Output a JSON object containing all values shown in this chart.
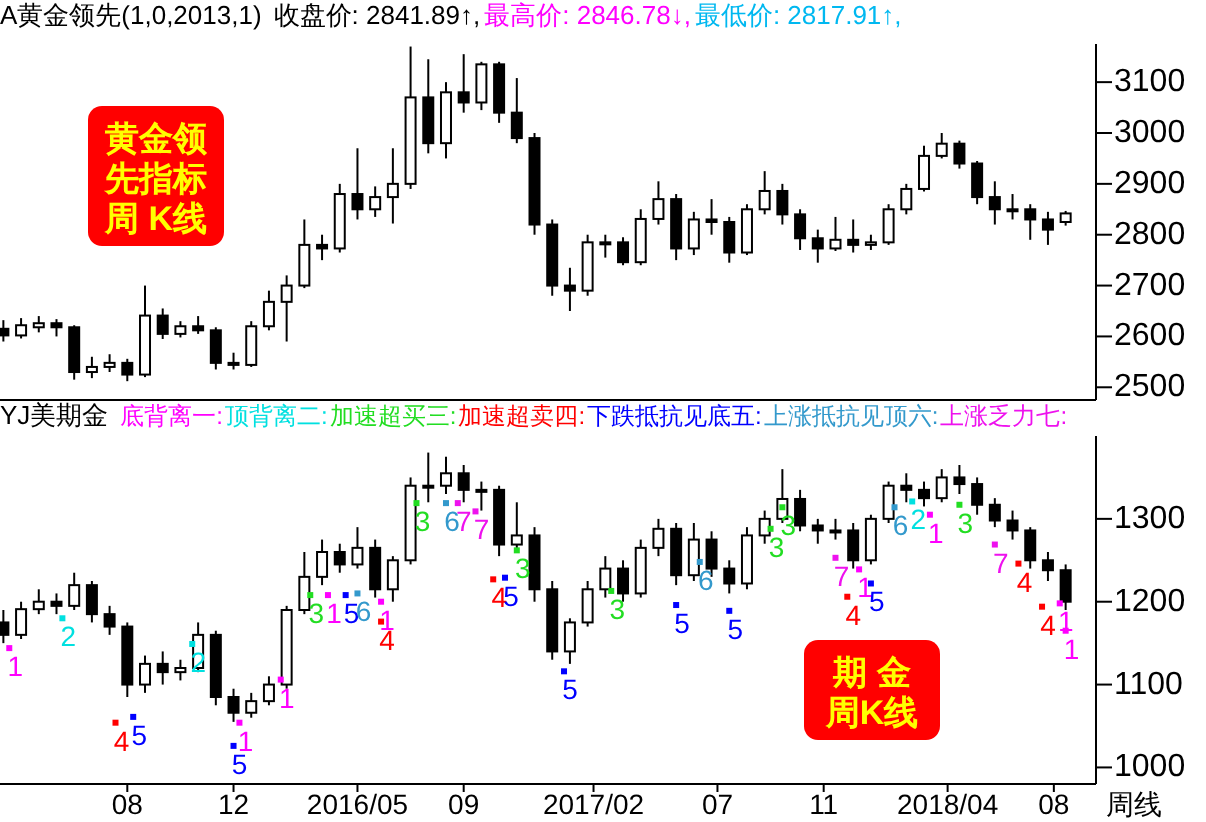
{
  "chart_data": [
    {
      "type": "candlestick",
      "title": "A黄金领先(1,0,2013,1)",
      "tick_labels": "y",
      "annotations": [
        "收盘价: 2841.89↑,",
        "最高价: 2846.78↓,",
        "最低价: 2817.91↑,",
        "黄金领先指标周 K线"
      ],
      "x": [
        "2015-03-09",
        "2015-03-30",
        "2015-04-20",
        "2015-05-11",
        "2015-06-01",
        "2015-06-22",
        "2015-07-13",
        "2015-08-03",
        "2015-08-24",
        "2015-09-14",
        "2015-10-05",
        "2015-10-26",
        "2015-11-16",
        "2015-12-07",
        "2015-12-28",
        "2016-01-18",
        "2016-02-08",
        "2016-02-29",
        "2016-03-21",
        "2016-04-11",
        "2016-05-02",
        "2016-05-23",
        "2016-06-13",
        "2016-07-04",
        "2016-07-25",
        "2016-08-15",
        "2016-09-05",
        "2016-09-26",
        "2016-10-17",
        "2016-11-07",
        "2016-11-28",
        "2016-12-19",
        "2017-01-09",
        "2017-01-30",
        "2017-02-20",
        "2017-03-13",
        "2017-04-03",
        "2017-04-24",
        "2017-05-15",
        "2017-06-05",
        "2017-06-26",
        "2017-07-17",
        "2017-08-07",
        "2017-08-28",
        "2017-09-18",
        "2017-10-09",
        "2017-10-30",
        "2017-11-20",
        "2017-12-11",
        "2018-01-01",
        "2018-01-22",
        "2018-02-12",
        "2018-03-05",
        "2018-03-26",
        "2018-04-16",
        "2018-05-07",
        "2018-05-28",
        "2018-06-18",
        "2018-07-09",
        "2018-07-30",
        "2018-08-20"
      ],
      "ohlc": [
        [
          2615,
          2632,
          2590,
          2602
        ],
        [
          2602,
          2636,
          2596,
          2622
        ],
        [
          2618,
          2640,
          2608,
          2626
        ],
        [
          2626,
          2634,
          2600,
          2618
        ],
        [
          2618,
          2622,
          2515,
          2530
        ],
        [
          2530,
          2560,
          2518,
          2540
        ],
        [
          2540,
          2565,
          2530,
          2548
        ],
        [
          2548,
          2556,
          2512,
          2525
        ],
        [
          2525,
          2700,
          2520,
          2641
        ],
        [
          2641,
          2655,
          2595,
          2605
        ],
        [
          2605,
          2630,
          2598,
          2620
        ],
        [
          2620,
          2640,
          2605,
          2612
        ],
        [
          2612,
          2618,
          2535,
          2548
        ],
        [
          2548,
          2568,
          2535,
          2544
        ],
        [
          2544,
          2630,
          2540,
          2620
        ],
        [
          2620,
          2690,
          2612,
          2668
        ],
        [
          2668,
          2720,
          2590,
          2700
        ],
        [
          2700,
          2830,
          2695,
          2780
        ],
        [
          2780,
          2800,
          2750,
          2773
        ],
        [
          2773,
          2900,
          2765,
          2880
        ],
        [
          2880,
          2970,
          2830,
          2850
        ],
        [
          2850,
          2895,
          2835,
          2874
        ],
        [
          2874,
          2970,
          2822,
          2900
        ],
        [
          2900,
          3170,
          2890,
          3070
        ],
        [
          3070,
          3145,
          2960,
          2980
        ],
        [
          2980,
          3100,
          2950,
          3080
        ],
        [
          3080,
          3155,
          3040,
          3060
        ],
        [
          3060,
          3140,
          3045,
          3135
        ],
        [
          3135,
          3140,
          3020,
          3040
        ],
        [
          3040,
          3108,
          2980,
          2990
        ],
        [
          2990,
          3000,
          2800,
          2820
        ],
        [
          2820,
          2830,
          2680,
          2700
        ],
        [
          2700,
          2735,
          2650,
          2690
        ],
        [
          2690,
          2800,
          2680,
          2785
        ],
        [
          2785,
          2800,
          2755,
          2785
        ],
        [
          2785,
          2795,
          2740,
          2746
        ],
        [
          2746,
          2850,
          2740,
          2831
        ],
        [
          2831,
          2905,
          2820,
          2870
        ],
        [
          2870,
          2880,
          2750,
          2773
        ],
        [
          2773,
          2845,
          2760,
          2830
        ],
        [
          2830,
          2870,
          2800,
          2825
        ],
        [
          2825,
          2835,
          2745,
          2765
        ],
        [
          2765,
          2860,
          2760,
          2850
        ],
        [
          2850,
          2925,
          2840,
          2886
        ],
        [
          2886,
          2900,
          2820,
          2840
        ],
        [
          2840,
          2850,
          2770,
          2793
        ],
        [
          2793,
          2810,
          2745,
          2773
        ],
        [
          2773,
          2835,
          2768,
          2790
        ],
        [
          2790,
          2830,
          2765,
          2780
        ],
        [
          2780,
          2800,
          2770,
          2785
        ],
        [
          2785,
          2860,
          2780,
          2850
        ],
        [
          2850,
          2900,
          2840,
          2890
        ],
        [
          2890,
          2975,
          2885,
          2955
        ],
        [
          2955,
          3000,
          2950,
          2979
        ],
        [
          2979,
          2985,
          2930,
          2940
        ],
        [
          2940,
          2945,
          2860,
          2874
        ],
        [
          2874,
          2905,
          2820,
          2850
        ],
        [
          2850,
          2880,
          2830,
          2850
        ],
        [
          2850,
          2860,
          2790,
          2830
        ],
        [
          2830,
          2845,
          2780,
          2810
        ],
        [
          2825,
          2846.78,
          2817.91,
          2841.89
        ]
      ],
      "xlim": [
        "2015-03-05",
        "2018-09-25"
      ],
      "ylim": [
        2475,
        3175
      ],
      "yticks": [
        2500,
        2600,
        2700,
        2800,
        2900,
        3000,
        3100
      ]
    },
    {
      "type": "candlestick",
      "title": "YJ美期金",
      "xlabel": "周线",
      "legend": "top",
      "marker": "square",
      "annotations": [
        {
          "text": "1",
          "x": "2015-03-16",
          "y": 1144
        },
        {
          "text": "1",
          "x": "2015-12-14",
          "y": 1054
        },
        {
          "text": "1",
          "x": "2016-02-01",
          "y": 1106
        },
        {
          "text": "1",
          "x": "2016-03-28",
          "y": 1208
        },
        {
          "text": "1",
          "x": "2016-05-30",
          "y": 1200
        },
        {
          "text": "1",
          "x": "2017-12-18",
          "y": 1239
        },
        {
          "text": "1",
          "x": "2018-03-12",
          "y": 1305
        },
        {
          "text": "1",
          "x": "2018-08-13",
          "y": 1198
        },
        {
          "text": "1",
          "x": "2018-08-20",
          "y": 1165
        },
        {
          "text": "2",
          "x": "2015-05-18",
          "y": 1180
        },
        {
          "text": "2",
          "x": "2015-10-19",
          "y": 1149
        },
        {
          "text": "2",
          "x": "2018-02-19",
          "y": 1321
        },
        {
          "text": "3",
          "x": "2016-03-07",
          "y": 1208
        },
        {
          "text": "3",
          "x": "2016-07-11",
          "y": 1319
        },
        {
          "text": "3",
          "x": "2016-11-07",
          "y": 1262
        },
        {
          "text": "3",
          "x": "2017-02-27",
          "y": 1213
        },
        {
          "text": "3",
          "x": "2017-09-04",
          "y": 1288
        },
        {
          "text": "3",
          "x": "2017-09-18",
          "y": 1314
        },
        {
          "text": "3",
          "x": "2018-04-16",
          "y": 1317
        },
        {
          "text": "4",
          "x": "2015-07-20",
          "y": 1054
        },
        {
          "text": "4",
          "x": "2016-05-30",
          "y": 1176
        },
        {
          "text": "4",
          "x": "2016-10-10",
          "y": 1227
        },
        {
          "text": "4",
          "x": "2017-12-04",
          "y": 1206
        },
        {
          "text": "4",
          "x": "2018-06-25",
          "y": 1246
        },
        {
          "text": "4",
          "x": "2018-07-23",
          "y": 1194
        },
        {
          "text": "5",
          "x": "2015-08-10",
          "y": 1061
        },
        {
          "text": "5",
          "x": "2015-12-07",
          "y": 1026
        },
        {
          "text": "5",
          "x": "2016-04-18",
          "y": 1208
        },
        {
          "text": "5",
          "x": "2016-10-24",
          "y": 1229
        },
        {
          "text": "5",
          "x": "2017-01-02",
          "y": 1116
        },
        {
          "text": "5",
          "x": "2017-05-15",
          "y": 1196
        },
        {
          "text": "5",
          "x": "2017-07-17",
          "y": 1189
        },
        {
          "text": "5",
          "x": "2018-01-01",
          "y": 1222
        },
        {
          "text": "6",
          "x": "2016-05-02",
          "y": 1210
        },
        {
          "text": "6",
          "x": "2016-08-15",
          "y": 1319
        },
        {
          "text": "6",
          "x": "2017-06-12",
          "y": 1248
        },
        {
          "text": "6",
          "x": "2018-01-29",
          "y": 1314
        },
        {
          "text": "7",
          "x": "2016-08-29",
          "y": 1319
        },
        {
          "text": "7",
          "x": "2016-09-19",
          "y": 1309
        },
        {
          "text": "7",
          "x": "2017-11-20",
          "y": 1253
        },
        {
          "text": "7",
          "x": "2018-05-28",
          "y": 1269
        },
        "期 金周K线"
      ],
      "x": [
        "2015-03-09",
        "2015-03-30",
        "2015-04-20",
        "2015-05-11",
        "2015-06-01",
        "2015-06-22",
        "2015-07-13",
        "2015-08-03",
        "2015-08-24",
        "2015-09-14",
        "2015-10-05",
        "2015-10-26",
        "2015-11-16",
        "2015-12-07",
        "2015-12-28",
        "2016-01-18",
        "2016-02-08",
        "2016-02-29",
        "2016-03-21",
        "2016-04-11",
        "2016-05-02",
        "2016-05-23",
        "2016-06-13",
        "2016-07-04",
        "2016-07-25",
        "2016-08-15",
        "2016-09-05",
        "2016-09-26",
        "2016-10-17",
        "2016-11-07",
        "2016-11-28",
        "2016-12-19",
        "2017-01-09",
        "2017-01-30",
        "2017-02-20",
        "2017-03-13",
        "2017-04-03",
        "2017-04-24",
        "2017-05-15",
        "2017-06-05",
        "2017-06-26",
        "2017-07-17",
        "2017-08-07",
        "2017-08-28",
        "2017-09-18",
        "2017-10-09",
        "2017-10-30",
        "2017-11-20",
        "2017-12-11",
        "2018-01-01",
        "2018-01-22",
        "2018-02-12",
        "2018-03-05",
        "2018-03-26",
        "2018-04-16",
        "2018-05-07",
        "2018-05-28",
        "2018-06-18",
        "2018-07-09",
        "2018-07-30",
        "2018-08-20"
      ],
      "ohlc": [
        [
          1175,
          1190,
          1150,
          1160
        ],
        [
          1160,
          1200,
          1155,
          1191
        ],
        [
          1191,
          1215,
          1185,
          1200
        ],
        [
          1200,
          1210,
          1185,
          1195
        ],
        [
          1195,
          1235,
          1190,
          1220
        ],
        [
          1220,
          1225,
          1175,
          1185
        ],
        [
          1185,
          1195,
          1160,
          1170
        ],
        [
          1170,
          1175,
          1085,
          1100
        ],
        [
          1100,
          1135,
          1090,
          1125
        ],
        [
          1125,
          1140,
          1100,
          1115
        ],
        [
          1115,
          1130,
          1105,
          1120
        ],
        [
          1120,
          1175,
          1115,
          1160
        ],
        [
          1160,
          1165,
          1075,
          1085
        ],
        [
          1085,
          1095,
          1055,
          1066
        ],
        [
          1066,
          1090,
          1060,
          1080
        ],
        [
          1080,
          1110,
          1075,
          1100
        ],
        [
          1100,
          1195,
          1095,
          1190
        ],
        [
          1190,
          1260,
          1185,
          1230
        ],
        [
          1230,
          1275,
          1220,
          1260
        ],
        [
          1260,
          1270,
          1235,
          1245
        ],
        [
          1245,
          1290,
          1240,
          1265
        ],
        [
          1265,
          1275,
          1205,
          1215
        ],
        [
          1215,
          1255,
          1200,
          1250
        ],
        [
          1250,
          1350,
          1245,
          1340
        ],
        [
          1340,
          1380,
          1320,
          1340
        ],
        [
          1340,
          1375,
          1330,
          1355
        ],
        [
          1355,
          1365,
          1320,
          1335
        ],
        [
          1335,
          1345,
          1310,
          1335
        ],
        [
          1335,
          1340,
          1255,
          1269
        ],
        [
          1269,
          1320,
          1260,
          1280
        ],
        [
          1280,
          1290,
          1200,
          1215
        ],
        [
          1215,
          1225,
          1130,
          1140
        ],
        [
          1140,
          1180,
          1125,
          1175
        ],
        [
          1175,
          1225,
          1170,
          1215
        ],
        [
          1215,
          1255,
          1205,
          1240
        ],
        [
          1240,
          1250,
          1200,
          1210
        ],
        [
          1210,
          1275,
          1205,
          1265
        ],
        [
          1265,
          1300,
          1255,
          1288
        ],
        [
          1288,
          1295,
          1220,
          1232
        ],
        [
          1232,
          1295,
          1225,
          1275
        ],
        [
          1275,
          1285,
          1230,
          1240
        ],
        [
          1240,
          1250,
          1210,
          1222
        ],
        [
          1222,
          1290,
          1215,
          1280
        ],
        [
          1280,
          1310,
          1270,
          1300
        ],
        [
          1300,
          1360,
          1295,
          1324
        ],
        [
          1324,
          1335,
          1285,
          1292
        ],
        [
          1292,
          1300,
          1270,
          1286
        ],
        [
          1286,
          1300,
          1275,
          1286
        ],
        [
          1286,
          1295,
          1240,
          1250
        ],
        [
          1250,
          1305,
          1245,
          1300
        ],
        [
          1300,
          1345,
          1295,
          1340
        ],
        [
          1340,
          1355,
          1320,
          1335
        ],
        [
          1335,
          1345,
          1315,
          1325
        ],
        [
          1325,
          1360,
          1320,
          1350
        ],
        [
          1350,
          1365,
          1330,
          1342
        ],
        [
          1342,
          1350,
          1305,
          1317
        ],
        [
          1317,
          1325,
          1290,
          1298
        ],
        [
          1298,
          1310,
          1275,
          1286
        ],
        [
          1286,
          1290,
          1240,
          1250
        ],
        [
          1250,
          1260,
          1225,
          1238
        ],
        [
          1238,
          1245,
          1190,
          1200
        ]
      ],
      "series": [
        {
          "name": "底背离一:",
          "type": "scatter",
          "color": "#ff00ff",
          "x": [
            "2015-03-16",
            "2015-12-14",
            "2016-02-01",
            "2016-03-28",
            "2016-05-30",
            "2017-12-18",
            "2018-03-12",
            "2018-08-13",
            "2018-08-20"
          ],
          "values": [
            1144,
            1054,
            1106,
            1208,
            1200,
            1239,
            1305,
            1198,
            1165
          ]
        },
        {
          "name": "顶背离二:",
          "type": "scatter",
          "color": "#00e0e0",
          "x": [
            "2015-05-18",
            "2015-10-19",
            "2018-02-19"
          ],
          "values": [
            1180,
            1149,
            1321
          ]
        },
        {
          "name": "加速超买三:",
          "type": "scatter",
          "color": "#22dd22",
          "x": [
            "2016-03-07",
            "2016-07-11",
            "2016-11-07",
            "2017-02-27",
            "2017-09-04",
            "2017-09-18",
            "2018-04-16"
          ],
          "values": [
            1208,
            1319,
            1262,
            1213,
            1288,
            1314,
            1317
          ]
        },
        {
          "name": "加速超卖四:",
          "type": "scatter",
          "color": "#ff0000",
          "x": [
            "2015-07-20",
            "2016-05-30",
            "2016-10-10",
            "2017-12-04",
            "2018-06-25",
            "2018-07-23"
          ],
          "values": [
            1054,
            1176,
            1227,
            1206,
            1246,
            1194
          ]
        },
        {
          "name": "下跌抵抗见底五:",
          "type": "scatter",
          "color": "#0000ff",
          "x": [
            "2015-08-10",
            "2015-12-07",
            "2016-04-18",
            "2016-10-24",
            "2017-01-02",
            "2017-05-15",
            "2017-07-17",
            "2018-01-01"
          ],
          "values": [
            1061,
            1026,
            1208,
            1229,
            1116,
            1196,
            1189,
            1222
          ]
        },
        {
          "name": "上涨抵抗见顶六:",
          "type": "scatter",
          "color": "#3399cc",
          "x": [
            "2016-05-02",
            "2016-08-15",
            "2017-06-12",
            "2018-01-29"
          ],
          "values": [
            1210,
            1319,
            1248,
            1314
          ]
        },
        {
          "name": "上涨乏力七:",
          "type": "scatter",
          "color": "#ee11ee",
          "x": [
            "2016-08-29",
            "2016-09-19",
            "2017-11-20",
            "2018-05-28"
          ],
          "values": [
            1319,
            1309,
            1253,
            1269
          ]
        }
      ],
      "xlim": [
        "2015-03-05",
        "2018-09-25"
      ],
      "xticks": [
        {
          "value": "2015-08-03",
          "label": "08"
        },
        {
          "value": "2015-12-07",
          "label": "12"
        },
        {
          "value": "2016-05-02",
          "label": "2016/05"
        },
        {
          "value": "2016-09-05",
          "label": "09"
        },
        {
          "value": "2017-02-06",
          "label": "2017/02"
        },
        {
          "value": "2017-07-03",
          "label": "07"
        },
        {
          "value": "2017-11-06",
          "label": "11"
        },
        {
          "value": "2018-04-02",
          "label": "2018/04"
        },
        {
          "value": "2018-08-06",
          "label": "08"
        }
      ],
      "ylim": [
        980,
        1400
      ],
      "yticks": [
        1000,
        1100,
        1200,
        1300
      ]
    }
  ]
}
